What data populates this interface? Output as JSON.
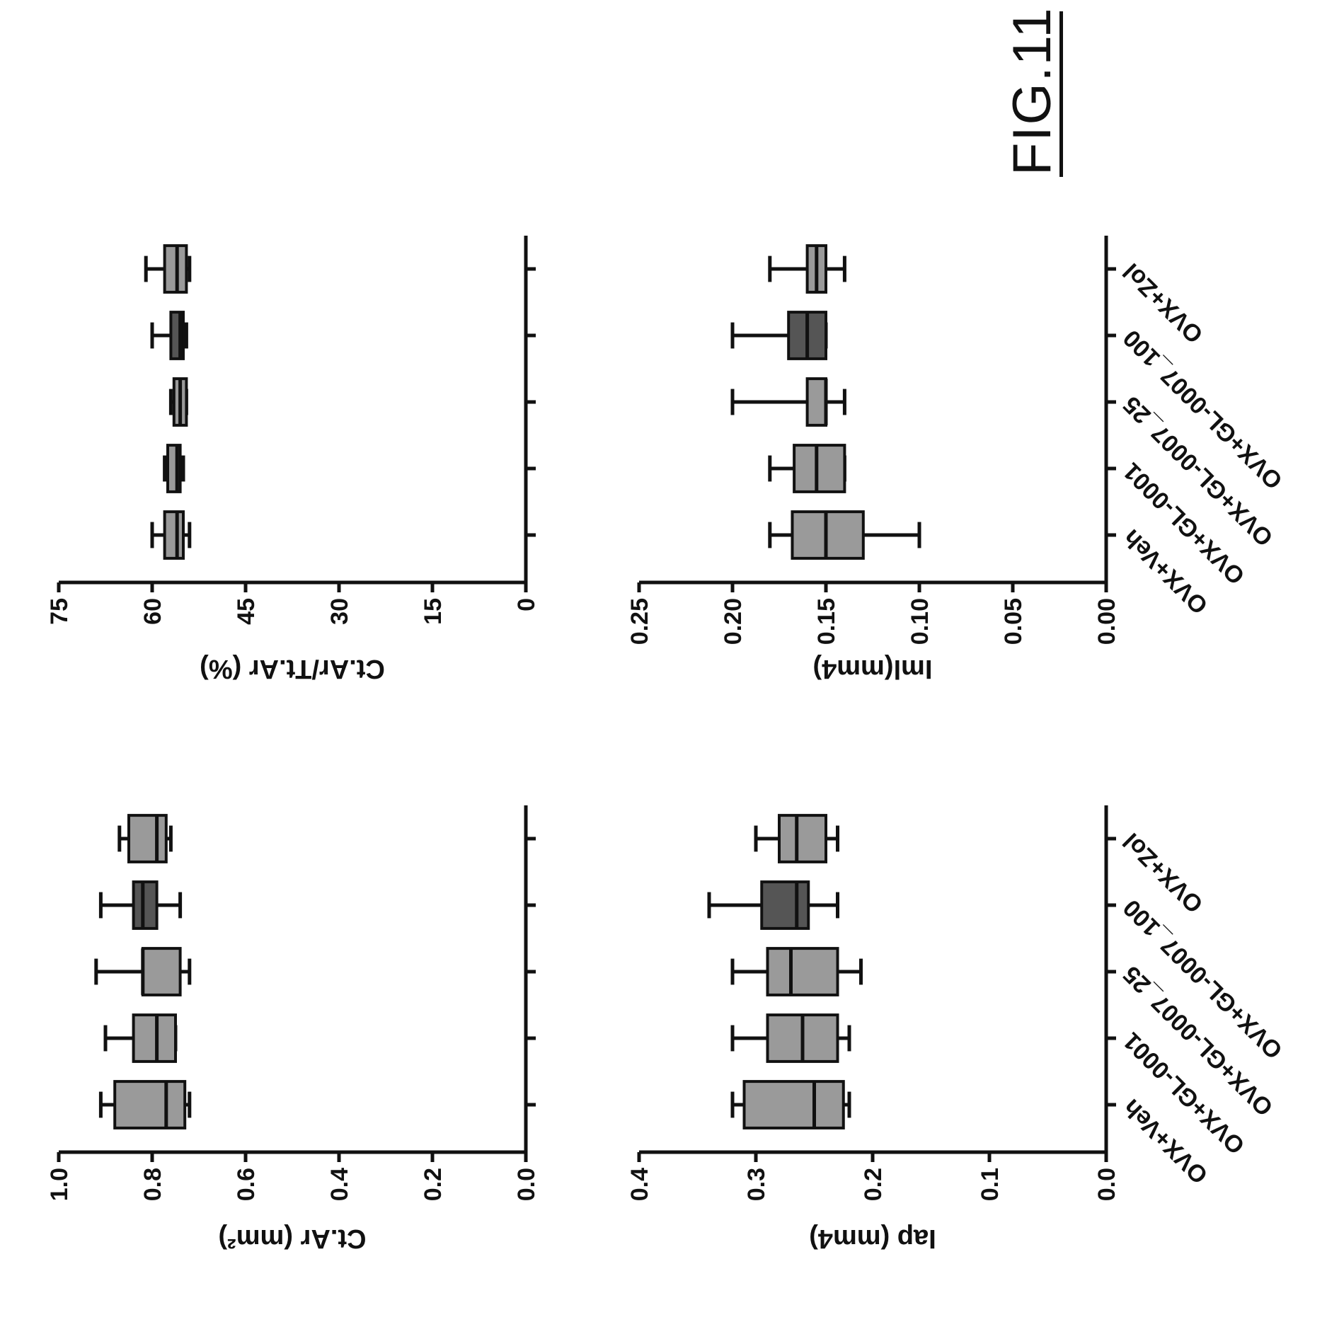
{
  "figure_label": "FIG.11",
  "colors": {
    "box_light": "#9a9a9a",
    "box_dark": "#555555",
    "ink": "#111111"
  },
  "chart_data": [
    {
      "type": "box",
      "ylabel": "Ct.Ar (mm²)",
      "ylim": [
        0,
        1.0
      ],
      "yticks": [
        "0.0",
        "0.2",
        "0.4",
        "0.6",
        "0.8",
        "1.0"
      ],
      "categories": [
        "OVX+Veh",
        "OVX+GL-0001",
        "OVX+GL-0007_25",
        "OVX+GL-0007_100",
        "OVX+Zol"
      ],
      "boxes": [
        {
          "min": 0.72,
          "q1": 0.73,
          "median": 0.77,
          "q3": 0.88,
          "max": 0.91,
          "shade": "light"
        },
        {
          "min": 0.75,
          "q1": 0.75,
          "median": 0.79,
          "q3": 0.84,
          "max": 0.9,
          "shade": "light"
        },
        {
          "min": 0.72,
          "q1": 0.74,
          "median": 0.82,
          "q3": 0.82,
          "max": 0.92,
          "shade": "light"
        },
        {
          "min": 0.74,
          "q1": 0.79,
          "median": 0.82,
          "q3": 0.84,
          "max": 0.91,
          "shade": "dark"
        },
        {
          "min": 0.76,
          "q1": 0.77,
          "median": 0.79,
          "q3": 0.85,
          "max": 0.87,
          "shade": "light"
        }
      ]
    },
    {
      "type": "box",
      "ylabel": "Ct.Ar/Tt.Ar (%)",
      "ylim": [
        0,
        75
      ],
      "yticks": [
        "0",
        "15",
        "30",
        "45",
        "60",
        "75"
      ],
      "categories": [
        "OVX+Veh",
        "OVX+GL-0001",
        "OVX+GL-0007_25",
        "OVX+GL-0007_100",
        "OVX+Zol"
      ],
      "boxes": [
        {
          "min": 54,
          "q1": 55,
          "median": 56,
          "q3": 58,
          "max": 60,
          "shade": "light"
        },
        {
          "min": 55,
          "q1": 55.5,
          "median": 56,
          "q3": 57.5,
          "max": 58,
          "shade": "light"
        },
        {
          "min": 54.5,
          "q1": 54.5,
          "median": 55.5,
          "q3": 56.5,
          "max": 57,
          "shade": "light"
        },
        {
          "min": 54.5,
          "q1": 55,
          "median": 55.5,
          "q3": 57,
          "max": 60,
          "shade": "dark"
        },
        {
          "min": 54,
          "q1": 54.5,
          "median": 56,
          "q3": 58,
          "max": 61,
          "shade": "light"
        }
      ]
    },
    {
      "type": "box",
      "ylabel": "Iap (mm4)",
      "ylim": [
        0,
        0.4
      ],
      "yticks": [
        "0.0",
        "0.1",
        "0.2",
        "0.3",
        "0.4"
      ],
      "categories": [
        "OVX+Veh",
        "OVX+GL-0001",
        "OVX+GL-0007_25",
        "OVX+GL-0007_100",
        "OVX+Zol"
      ],
      "boxes": [
        {
          "min": 0.22,
          "q1": 0.225,
          "median": 0.25,
          "q3": 0.31,
          "max": 0.32,
          "shade": "light"
        },
        {
          "min": 0.22,
          "q1": 0.23,
          "median": 0.26,
          "q3": 0.29,
          "max": 0.32,
          "shade": "light"
        },
        {
          "min": 0.21,
          "q1": 0.23,
          "median": 0.27,
          "q3": 0.29,
          "max": 0.32,
          "shade": "light"
        },
        {
          "min": 0.23,
          "q1": 0.255,
          "median": 0.265,
          "q3": 0.295,
          "max": 0.34,
          "shade": "dark"
        },
        {
          "min": 0.23,
          "q1": 0.24,
          "median": 0.265,
          "q3": 0.28,
          "max": 0.3,
          "shade": "light"
        }
      ]
    },
    {
      "type": "box",
      "ylabel": "Iml(mm4)",
      "ylim": [
        0,
        0.25
      ],
      "yticks": [
        "0.00",
        "0.05",
        "0.10",
        "0.15",
        "0.20",
        "0.25"
      ],
      "categories": [
        "OVX+Veh",
        "OVX+GL-0001",
        "OVX+GL-0007_25",
        "OVX+GL-0007_100",
        "OVX+Zol"
      ],
      "boxes": [
        {
          "min": 0.1,
          "q1": 0.13,
          "median": 0.15,
          "q3": 0.168,
          "max": 0.18,
          "shade": "light"
        },
        {
          "min": 0.14,
          "q1": 0.14,
          "median": 0.155,
          "q3": 0.167,
          "max": 0.18,
          "shade": "light"
        },
        {
          "min": 0.14,
          "q1": 0.15,
          "median": 0.15,
          "q3": 0.16,
          "max": 0.2,
          "shade": "light"
        },
        {
          "min": 0.15,
          "q1": 0.15,
          "median": 0.16,
          "q3": 0.17,
          "max": 0.2,
          "shade": "dark"
        },
        {
          "min": 0.14,
          "q1": 0.15,
          "median": 0.155,
          "q3": 0.16,
          "max": 0.18,
          "shade": "light"
        }
      ]
    }
  ]
}
